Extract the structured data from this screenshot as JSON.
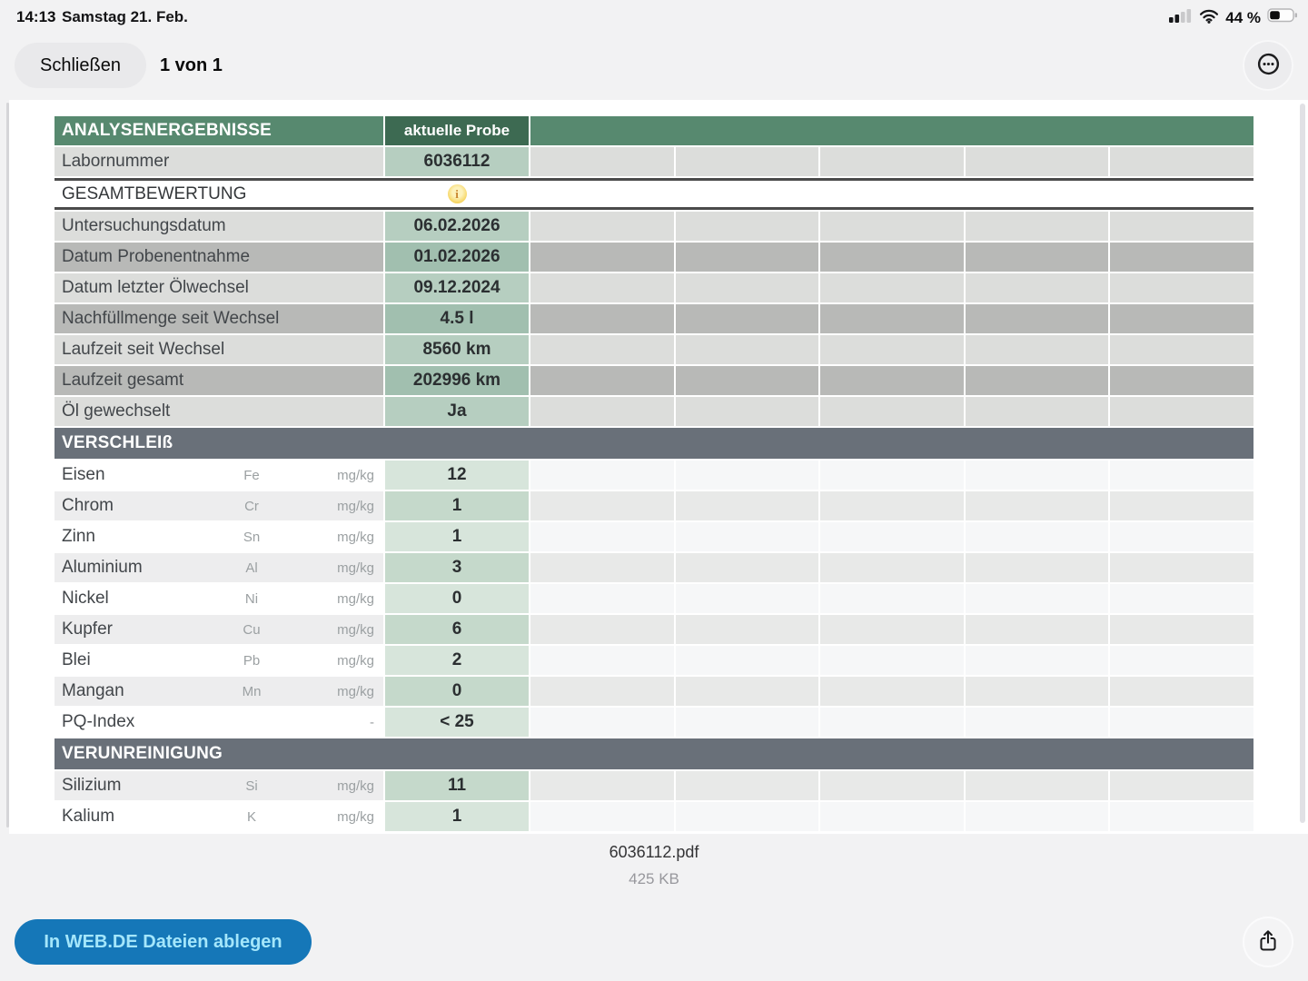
{
  "status_bar": {
    "time": "14:13",
    "date": "Samstag 21. Feb.",
    "battery_label": "44 %",
    "battery_level": 44
  },
  "toolbar": {
    "close_label": "Schließen",
    "page_indicator": "1 von 1"
  },
  "table": {
    "header": {
      "title": "ANALYSENERGEBNISSE",
      "column": "aktuelle Probe"
    },
    "info_icon_glyph": "i",
    "rows": [
      {
        "type": "info",
        "label": "Labornummer",
        "value": "6036112"
      },
      {
        "type": "rating",
        "label": "GESAMTBEWERTUNG"
      },
      {
        "type": "info",
        "label": "Untersuchungsdatum",
        "value": "06.02.2026"
      },
      {
        "type": "info",
        "label": "Datum Probenentnahme",
        "value": "01.02.2026"
      },
      {
        "type": "info",
        "label": "Datum letzter Ölwechsel",
        "value": "09.12.2024"
      },
      {
        "type": "info",
        "label": "Nachfüllmenge seit Wechsel",
        "value": "4.5 l"
      },
      {
        "type": "info",
        "label": "Laufzeit seit Wechsel",
        "value": "8560 km"
      },
      {
        "type": "info",
        "label": "Laufzeit gesamt",
        "value": "202996 km"
      },
      {
        "type": "info",
        "label": "Öl gewechselt",
        "value": "Ja"
      }
    ],
    "sections": [
      {
        "title": "VERSCHLEIß",
        "rows": [
          {
            "name": "Eisen",
            "symbol": "Fe",
            "unit": "mg/kg",
            "value": "12"
          },
          {
            "name": "Chrom",
            "symbol": "Cr",
            "unit": "mg/kg",
            "value": "1"
          },
          {
            "name": "Zinn",
            "symbol": "Sn",
            "unit": "mg/kg",
            "value": "1"
          },
          {
            "name": "Aluminium",
            "symbol": "Al",
            "unit": "mg/kg",
            "value": "3"
          },
          {
            "name": "Nickel",
            "symbol": "Ni",
            "unit": "mg/kg",
            "value": "0"
          },
          {
            "name": "Kupfer",
            "symbol": "Cu",
            "unit": "mg/kg",
            "value": "6"
          },
          {
            "name": "Blei",
            "symbol": "Pb",
            "unit": "mg/kg",
            "value": "2"
          },
          {
            "name": "Mangan",
            "symbol": "Mn",
            "unit": "mg/kg",
            "value": "0"
          },
          {
            "name": "PQ-Index",
            "symbol": "",
            "unit": "-",
            "value": "< 25"
          }
        ]
      },
      {
        "title": "VERUNREINIGUNG",
        "rows": [
          {
            "name": "Silizium",
            "symbol": "Si",
            "unit": "mg/kg",
            "value": "11"
          },
          {
            "name": "Kalium",
            "symbol": "K",
            "unit": "mg/kg",
            "value": "1"
          }
        ]
      }
    ]
  },
  "footer": {
    "filename": "6036112.pdf",
    "filesize": "425 KB"
  },
  "bottom_bar": {
    "upload_label": "In WEB.DE Dateien ablegen"
  },
  "icons": {
    "cellular": "cellular-signal-2-of-4-bars",
    "wifi": "wifi-full",
    "battery": "battery-44-percent",
    "more": "ellipsis-in-circle",
    "share": "ios-share-box-arrow-up",
    "info": "yellow-info-circle"
  },
  "colors": {
    "header_green": "#57896f",
    "header_dark_green": "#3d6a52",
    "section_gray": "#697079",
    "value_green_light": "#b6cec0",
    "value_green_dark": "#a1bfaf",
    "accent_blue": "#1577b8",
    "accent_blue_text": "#a4e6fb"
  }
}
